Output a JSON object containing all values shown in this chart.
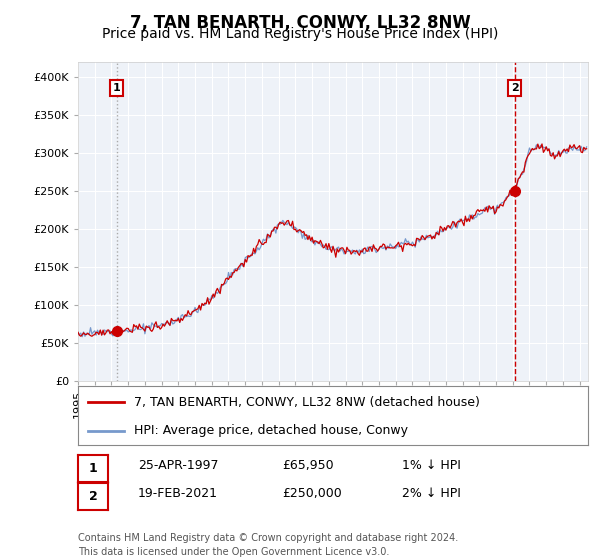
{
  "title": "7, TAN BENARTH, CONWY, LL32 8NW",
  "subtitle": "Price paid vs. HM Land Registry's House Price Index (HPI)",
  "ylim": [
    0,
    420000
  ],
  "yticks": [
    0,
    50000,
    100000,
    150000,
    200000,
    250000,
    300000,
    350000,
    400000
  ],
  "ytick_labels": [
    "£0",
    "£50K",
    "£100K",
    "£150K",
    "£200K",
    "£250K",
    "£300K",
    "£350K",
    "£400K"
  ],
  "sale1_x": 1997.31,
  "sale1_price": 65950,
  "sale2_x": 2021.12,
  "sale2_price": 250000,
  "hpi_color": "#7799cc",
  "price_color": "#cc0000",
  "vline1_color": "#aaaaaa",
  "vline1_style": ":",
  "vline2_color": "#cc0000",
  "vline2_style": "--",
  "chart_bg": "#eef2f8",
  "plot_bg": "#ffffff",
  "grid_color": "#ffffff",
  "legend_label_price": "7, TAN BENARTH, CONWY, LL32 8NW (detached house)",
  "legend_label_hpi": "HPI: Average price, detached house, Conwy",
  "annotation1_date": "25-APR-1997",
  "annotation1_price": "£65,950",
  "annotation1_hpi": "1% ↓ HPI",
  "annotation2_date": "19-FEB-2021",
  "annotation2_price": "£250,000",
  "annotation2_hpi": "2% ↓ HPI",
  "footer": "Contains HM Land Registry data © Crown copyright and database right 2024.\nThis data is licensed under the Open Government Licence v3.0.",
  "title_fontsize": 12,
  "subtitle_fontsize": 10,
  "tick_fontsize": 8,
  "legend_fontsize": 9,
  "annot_fontsize": 9,
  "footer_fontsize": 7,
  "anchors_t": [
    1995.0,
    1996.0,
    1997.3,
    1998.5,
    2000,
    2001,
    2002,
    2003,
    2004,
    2005,
    2006,
    2007.0,
    2007.5,
    2008,
    2009,
    2010,
    2011,
    2012,
    2013,
    2014,
    2015,
    2016,
    2017,
    2018,
    2019,
    2019.5,
    2020,
    2020.5,
    2021.1,
    2021.5,
    2022.0,
    2022.5,
    2023.0,
    2023.5,
    2024.0,
    2024.5,
    2025.0
  ],
  "anchors_v": [
    62000,
    63000,
    65000,
    68000,
    73000,
    80000,
    92000,
    110000,
    135000,
    158000,
    180000,
    205000,
    210000,
    200000,
    185000,
    175000,
    172000,
    170000,
    175000,
    178000,
    182000,
    190000,
    200000,
    210000,
    220000,
    228000,
    225000,
    235000,
    252000,
    270000,
    300000,
    310000,
    305000,
    295000,
    300000,
    305000,
    305000
  ]
}
